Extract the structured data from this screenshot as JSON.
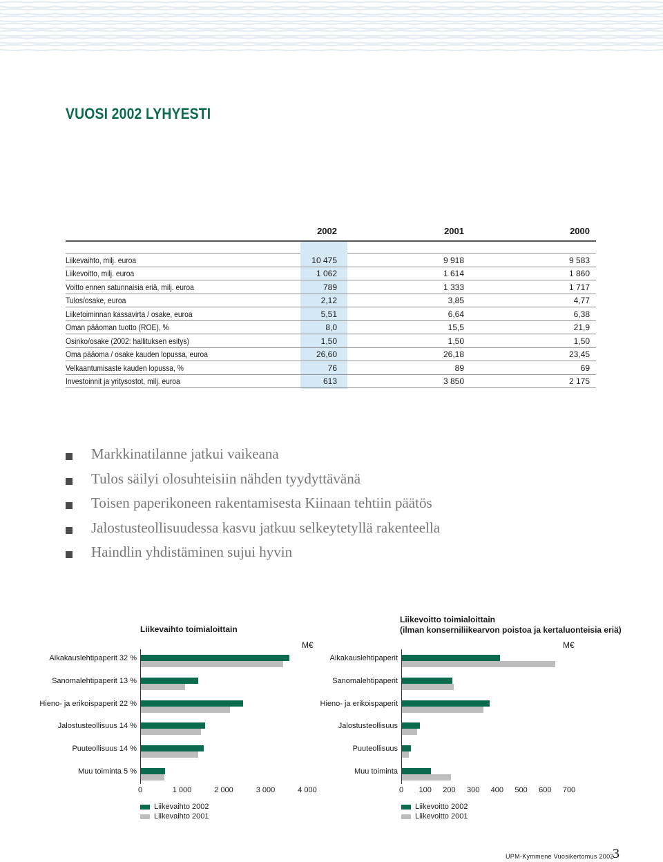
{
  "title": "VUOSI 2002 LYHYESTI",
  "table": {
    "years": [
      "2002",
      "2001",
      "2000"
    ],
    "rows": [
      {
        "label": "Liikevaihto, milj. euroa",
        "v2002": "10 475",
        "v2001": "9 918",
        "v2000": "9 583"
      },
      {
        "label": "Liikevoitto, milj. euroa",
        "v2002": "1 062",
        "v2001": "1 614",
        "v2000": "1 860"
      },
      {
        "label": "Voitto ennen satunnaisia eriä, milj. euroa",
        "v2002": "789",
        "v2001": "1 333",
        "v2000": "1 717"
      },
      {
        "label": "Tulos/osake, euroa",
        "v2002": "2,12",
        "v2001": "3,85",
        "v2000": "4,77"
      },
      {
        "label": "Liiketoiminnan kassavirta / osake, euroa",
        "v2002": "5,51",
        "v2001": "6,64",
        "v2000": "6,38"
      },
      {
        "label": "Oman pääoman tuotto (ROE), %",
        "v2002": "8,0",
        "v2001": "15,5",
        "v2000": "21,9"
      },
      {
        "label": "Osinko/osake (2002: hallituksen esitys)",
        "v2002": "1,50",
        "v2001": "1,50",
        "v2000": "1,50"
      },
      {
        "label": "Oma pääoma / osake kauden lopussa, euroa",
        "v2002": "26,60",
        "v2001": "26,18",
        "v2000": "23,45"
      },
      {
        "label": "Velkaantumisaste kauden lopussa, %",
        "v2002": "76",
        "v2001": "89",
        "v2000": "69"
      },
      {
        "label": "Investoinnit ja yritysostot, milj. euroa",
        "v2002": "613",
        "v2001": "3 850",
        "v2000": "2 175"
      }
    ]
  },
  "highlights": [
    "Markkinatilanne jatkui vaikeana",
    "Tulos säilyi olosuhteisiin nähden tyydyttävänä",
    "Toisen paperikoneen rakentamisesta Kiinaan tehtiin päätös",
    "Jalostusteollisuudessa kasvu jatkuu selkeytetyllä rakenteella",
    "Haindlin yhdistäminen sujui hyvin"
  ],
  "chart_data": [
    {
      "type": "bar",
      "orientation": "horizontal",
      "title": "Liikevaihto toimialoittain",
      "unit": "M€",
      "categories": [
        "Aikakauslehtipaperit 32 %",
        "Sanomalehtipaperit 13 %",
        "Hieno- ja erikoispaperit 22 %",
        "Jalostusteollisuus 14 %",
        "Puuteollisuus 14 %",
        "Muu toiminta 5 %"
      ],
      "series": [
        {
          "name": "Liikevaihto 2002",
          "color": "#0b6b4f",
          "values": [
            3550,
            1380,
            2450,
            1540,
            1500,
            580
          ]
        },
        {
          "name": "Liikevaihto 2001",
          "color": "#bdbdbd",
          "values": [
            3400,
            1050,
            2130,
            1440,
            1380,
            560
          ]
        }
      ],
      "xlim": [
        0,
        4000
      ],
      "xticks": [
        0,
        1000,
        2000,
        3000,
        4000
      ],
      "xtick_labels": [
        "0",
        "1 000",
        "2 000",
        "3 000",
        "4 000"
      ],
      "legend": "bottom-left"
    },
    {
      "type": "bar",
      "orientation": "horizontal",
      "title": "Liikevoitto toimialoittain",
      "subtitle": "(ilman konserniliikearvon poistoa ja kertaluonteisia eriä)",
      "unit": "M€",
      "categories": [
        "Aikakauslehtipaperit",
        "Sanomalehtipaperit",
        "Hieno- ja erikoispaperit",
        "Jalostusteollisuus",
        "Puuteollisuus",
        "Muu toiminta"
      ],
      "series": [
        {
          "name": "Liikevoitto 2002",
          "color": "#0b6b4f",
          "values": [
            410,
            210,
            365,
            75,
            38,
            120
          ]
        },
        {
          "name": "Liikevoitto 2001",
          "color": "#bdbdbd",
          "values": [
            640,
            215,
            340,
            62,
            28,
            205
          ]
        }
      ],
      "xlim": [
        0,
        700
      ],
      "xticks": [
        0,
        100,
        200,
        300,
        400,
        500,
        600,
        700
      ],
      "xtick_labels": [
        "0",
        "100",
        "200",
        "300",
        "400",
        "500",
        "600",
        "700"
      ],
      "legend": "bottom-left"
    }
  ],
  "footer": {
    "text": "UPM-Kymmene Vuosikertomus 2002",
    "page": "3"
  }
}
